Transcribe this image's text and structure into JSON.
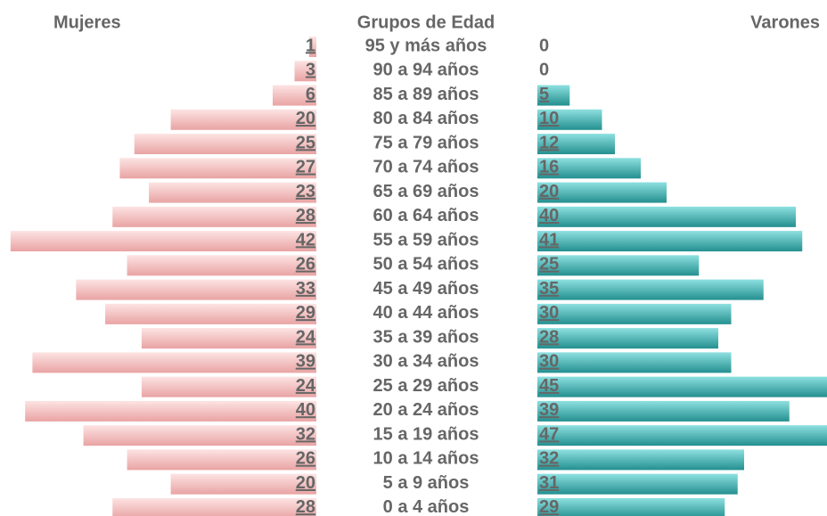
{
  "chart_data": {
    "type": "pyramid",
    "category_label": "Grupos de Edad",
    "categories": [
      "95 y más años",
      "90 a 94 años",
      "85 a 89 años",
      "80 a 84 años",
      "75 a 79 años",
      "70 a 74 años",
      "65 a 69 años",
      "60 a 64 años",
      "55 a 59 años",
      "50 a 54 años",
      "45 a 49 años",
      "40 a 44 años",
      "35 a 39 años",
      "30 a 34 años",
      "25 a 29 años",
      "20 a 24 años",
      "15 a 19 años",
      "10 a 14 años",
      "5 a 9 años",
      "0 a 4 años"
    ],
    "series": [
      {
        "name": "Mujeres",
        "color": "#f4b8b8",
        "values": [
          1,
          3,
          6,
          20,
          25,
          27,
          23,
          28,
          42,
          26,
          33,
          29,
          24,
          39,
          24,
          40,
          32,
          26,
          20,
          28
        ]
      },
      {
        "name": "Varones",
        "color": "#3fb3b3",
        "values": [
          0,
          0,
          5,
          10,
          12,
          16,
          20,
          40,
          41,
          25,
          35,
          30,
          28,
          30,
          45,
          39,
          47,
          32,
          31,
          29
        ]
      }
    ]
  }
}
